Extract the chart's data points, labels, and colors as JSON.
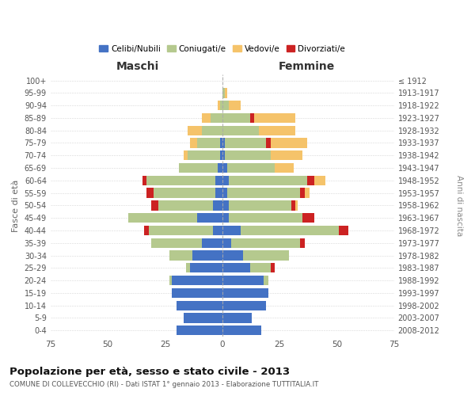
{
  "age_groups": [
    "0-4",
    "5-9",
    "10-14",
    "15-19",
    "20-24",
    "25-29",
    "30-34",
    "35-39",
    "40-44",
    "45-49",
    "50-54",
    "55-59",
    "60-64",
    "65-69",
    "70-74",
    "75-79",
    "80-84",
    "85-89",
    "90-94",
    "95-99",
    "100+"
  ],
  "birth_years": [
    "2008-2012",
    "2003-2007",
    "1998-2002",
    "1993-1997",
    "1988-1992",
    "1983-1987",
    "1978-1982",
    "1973-1977",
    "1968-1972",
    "1963-1967",
    "1958-1962",
    "1953-1957",
    "1948-1952",
    "1943-1947",
    "1938-1942",
    "1933-1937",
    "1928-1932",
    "1923-1927",
    "1918-1922",
    "1913-1917",
    "≤ 1912"
  ],
  "maschi_celibi": [
    20,
    17,
    20,
    22,
    22,
    14,
    13,
    9,
    4,
    11,
    4,
    3,
    3,
    2,
    1,
    1,
    0,
    0,
    0,
    0,
    0
  ],
  "maschi_coniugati": [
    0,
    0,
    0,
    0,
    1,
    2,
    10,
    22,
    28,
    30,
    24,
    27,
    30,
    17,
    14,
    10,
    9,
    5,
    1,
    0,
    0
  ],
  "maschi_vedovi": [
    0,
    0,
    0,
    0,
    0,
    0,
    0,
    0,
    0,
    0,
    0,
    0,
    0,
    0,
    2,
    3,
    6,
    4,
    1,
    0,
    0
  ],
  "maschi_divorziati": [
    0,
    0,
    0,
    0,
    0,
    0,
    0,
    0,
    2,
    0,
    3,
    3,
    2,
    0,
    0,
    0,
    0,
    0,
    0,
    0,
    0
  ],
  "femmine_celibi": [
    17,
    13,
    19,
    20,
    18,
    12,
    9,
    4,
    8,
    3,
    3,
    2,
    3,
    2,
    1,
    1,
    0,
    0,
    0,
    0,
    0
  ],
  "femmine_coniugati": [
    0,
    0,
    0,
    0,
    2,
    9,
    20,
    30,
    43,
    32,
    27,
    32,
    34,
    21,
    20,
    18,
    16,
    12,
    3,
    1,
    0
  ],
  "femmine_vedovi": [
    0,
    0,
    0,
    0,
    0,
    0,
    0,
    0,
    0,
    0,
    1,
    2,
    5,
    8,
    14,
    16,
    16,
    18,
    5,
    1,
    0
  ],
  "femmine_divorziati": [
    0,
    0,
    0,
    0,
    0,
    2,
    0,
    2,
    4,
    5,
    2,
    2,
    3,
    0,
    0,
    2,
    0,
    2,
    0,
    0,
    0
  ],
  "color_celibi": "#4472c4",
  "color_coniugati": "#b5c98e",
  "color_vedovi": "#f5c36a",
  "color_divorziati": "#cc2222",
  "xlim": 75,
  "title": "Popolazione per età, sesso e stato civile - 2013",
  "subtitle": "COMUNE DI COLLEVECCHIO (RI) - Dati ISTAT 1° gennaio 2013 - Elaborazione TUTTITALIA.IT",
  "ylabel": "Fasce di età",
  "ylabel_right": "Anni di nascita",
  "label_maschi": "Maschi",
  "label_femmine": "Femmine",
  "legend_celibi": "Celibi/Nubili",
  "legend_coniugati": "Coniugati/e",
  "legend_vedovi": "Vedovi/e",
  "legend_divorziati": "Divorziati/e"
}
